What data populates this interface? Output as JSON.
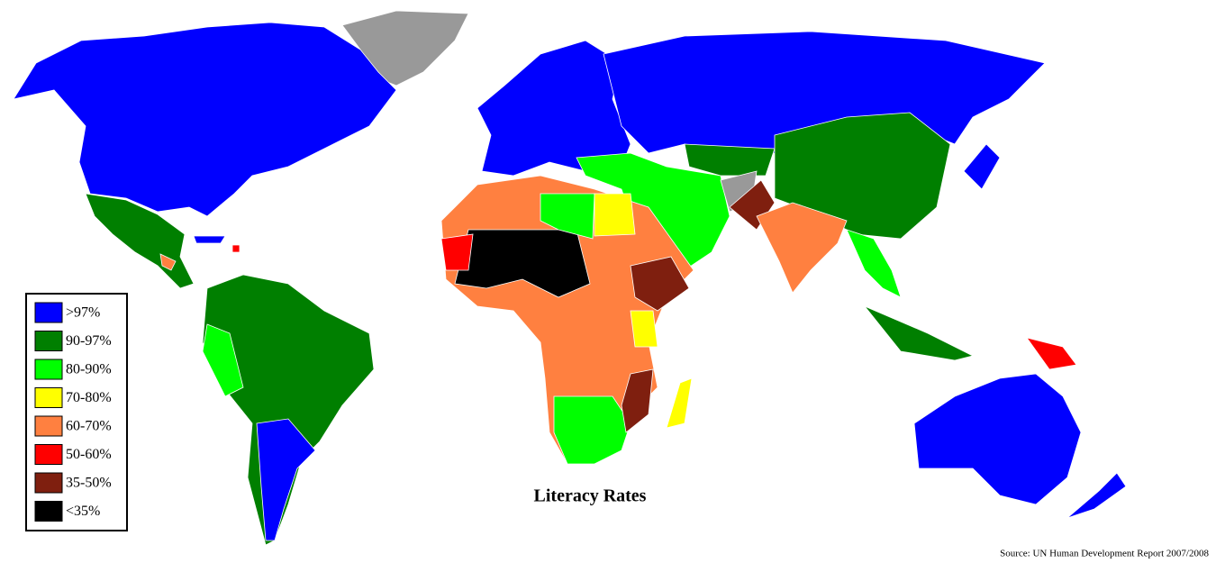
{
  "title": "Literacy Rates",
  "source": "Source: UN Human Development Report 2007/2008",
  "legend": [
    {
      "label": ">97%",
      "color": "#0000ff"
    },
    {
      "label": "90-97%",
      "color": "#007f00"
    },
    {
      "label": "80-90%",
      "color": "#00ff00"
    },
    {
      "label": "70-80%",
      "color": "#ffff00"
    },
    {
      "label": "60-70%",
      "color": "#ff8040"
    },
    {
      "label": "50-60%",
      "color": "#ff0000"
    },
    {
      "label": "35-50%",
      "color": "#7f1f0f"
    },
    {
      "label": "<35%",
      "color": "#000000"
    }
  ]
}
